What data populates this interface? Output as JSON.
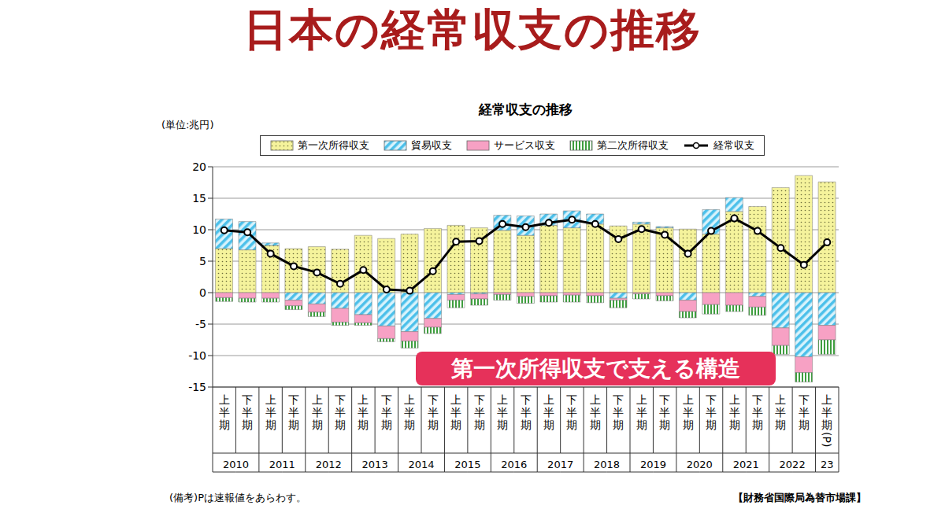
{
  "title": "日本の経常収支の推移",
  "chart_data": {
    "type": "bar",
    "stacked": true,
    "title": "経常収支の推移",
    "y_label": "(単位:兆円)",
    "categories": [
      "上半期",
      "下半期",
      "上半期",
      "下半期",
      "上半期",
      "下半期",
      "上半期",
      "下半期",
      "上半期",
      "下半期",
      "上半期",
      "下半期",
      "上半期",
      "下半期",
      "上半期",
      "下半期",
      "上半期",
      "下半期",
      "上半期",
      "下半期",
      "上半期",
      "下半期",
      "上半期",
      "下半期",
      "上半期",
      "下半期",
      "上半期(P)"
    ],
    "x_groups": [
      "2010",
      "2010",
      "2011",
      "2011",
      "2012",
      "2012",
      "2013",
      "2013",
      "2014",
      "2014",
      "2015",
      "2015",
      "2016",
      "2016",
      "2017",
      "2017",
      "2018",
      "2018",
      "2019",
      "2019",
      "2020",
      "2020",
      "2021",
      "2021",
      "2022",
      "2022",
      "23"
    ],
    "series": [
      {
        "name": "第一次所得収支",
        "color": "#f5f39c",
        "values": [
          7.0,
          6.8,
          7.5,
          7.0,
          7.3,
          6.9,
          9.1,
          8.6,
          9.3,
          10.2,
          10.7,
          10.3,
          9.9,
          9.1,
          10.7,
          10.3,
          10.9,
          10.6,
          10.9,
          10.3,
          10.1,
          9.3,
          12.9,
          13.7,
          16.7,
          18.6,
          17.6
        ]
      },
      {
        "name": "貿易収支",
        "color": "#4cc0ea",
        "values": [
          4.7,
          4.5,
          0.4,
          -1.2,
          -1.8,
          -2.5,
          -3.5,
          -5.3,
          -6.2,
          -4.1,
          -0.3,
          -0.2,
          2.4,
          3.1,
          1.8,
          2.7,
          1.6,
          -0.9,
          0.3,
          0.2,
          -1.2,
          3.9,
          2.2,
          -0.6,
          -5.6,
          -10.2,
          -5.2
        ]
      },
      {
        "name": "サービス収支",
        "color": "#f7a1c4",
        "values": [
          -0.8,
          -0.9,
          -0.9,
          -0.9,
          -1.3,
          -2.2,
          -1.3,
          -2.0,
          -1.5,
          -1.4,
          -0.9,
          -0.8,
          -0.3,
          -0.6,
          -0.5,
          -0.4,
          -0.5,
          -0.3,
          -0.2,
          -0.5,
          -1.8,
          -1.9,
          -2.0,
          -1.7,
          -2.8,
          -2.5,
          -2.3
        ]
      },
      {
        "name": "第二次所得収支",
        "color": "#3f9e3f",
        "values": [
          -0.6,
          -0.6,
          -0.6,
          -0.6,
          -0.7,
          -0.5,
          -0.4,
          -0.5,
          -1.1,
          -1.0,
          -1.2,
          -1.0,
          -0.9,
          -1.1,
          -1.0,
          -1.1,
          -1.1,
          -1.2,
          -0.8,
          -0.8,
          -1.0,
          -1.5,
          -1.0,
          -1.3,
          -1.4,
          -1.5,
          -2.3
        ]
      },
      {
        "name": "経常収支",
        "type": "line",
        "color": "#000000",
        "marker": "circle",
        "values": [
          9.9,
          9.6,
          6.2,
          4.2,
          3.2,
          1.4,
          3.6,
          0.5,
          0.3,
          3.4,
          8.1,
          8.2,
          10.9,
          10.4,
          11.1,
          11.6,
          10.9,
          8.5,
          10.1,
          9.2,
          6.2,
          9.8,
          11.8,
          9.8,
          7.1,
          4.4,
          8.0
        ]
      }
    ],
    "ylim": [
      -15,
      20
    ],
    "yticks": [
      -15,
      -10,
      -5,
      0,
      5,
      10,
      15,
      20
    ],
    "grid": true,
    "legend": "top",
    "annotations": [
      "第一次所得収支で支える構造"
    ],
    "note": "(備考)Pは速報値をあらわす。",
    "source": "【財務省国際局為替市場課】"
  }
}
